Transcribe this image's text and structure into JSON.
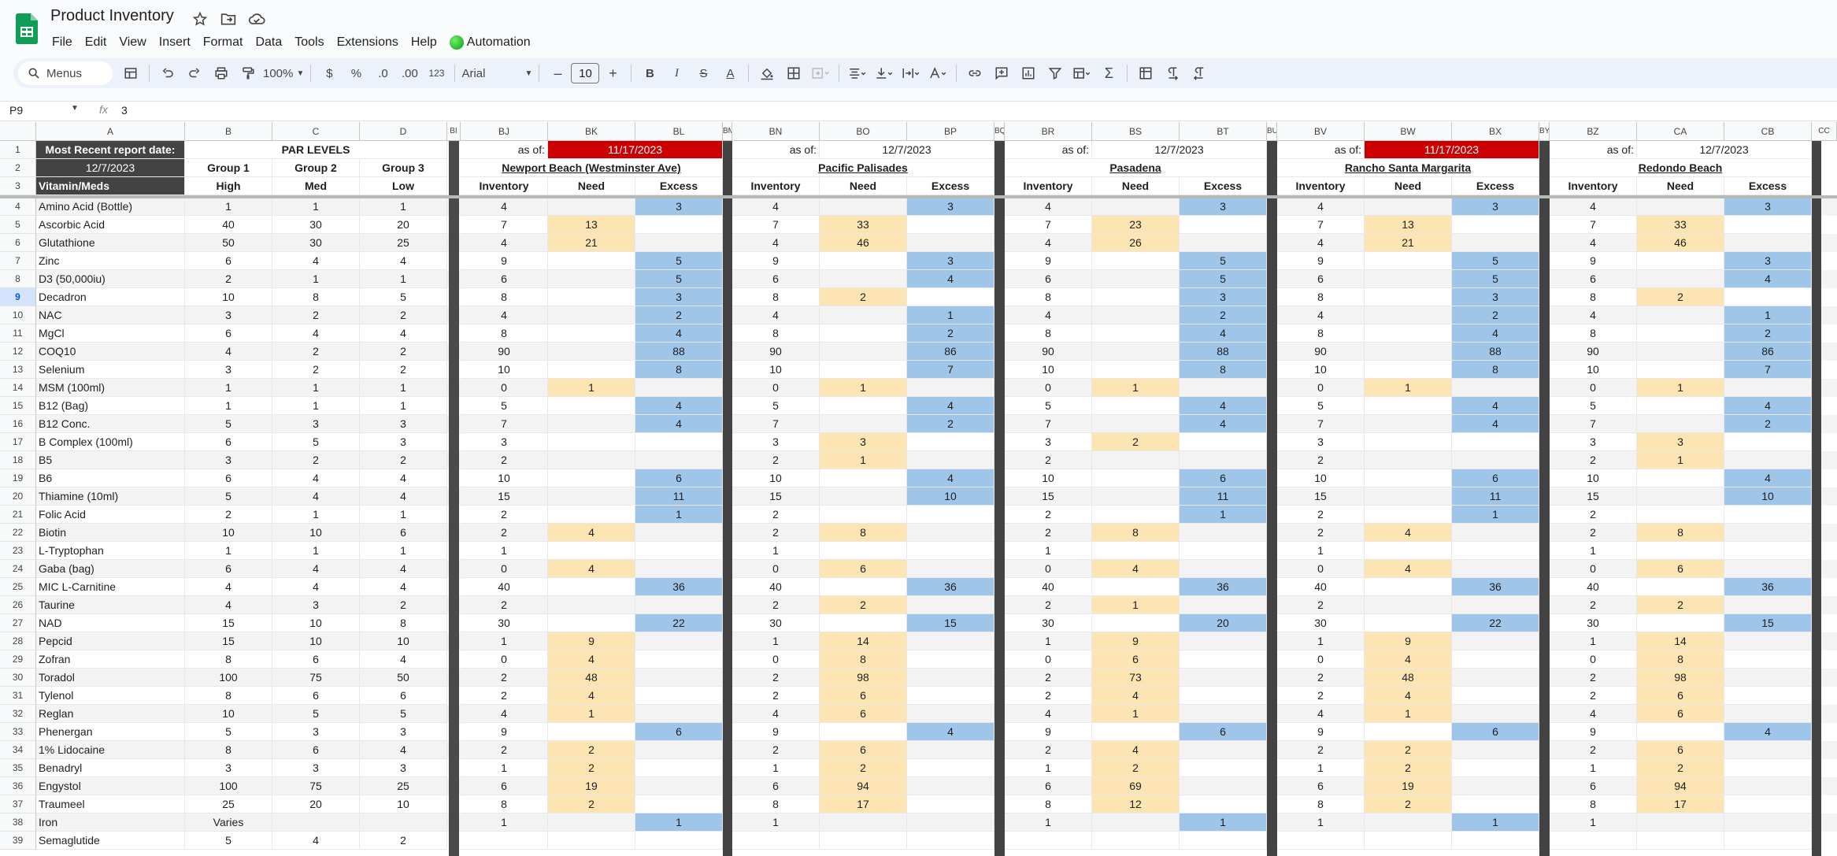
{
  "app": {
    "title": "Product Inventory",
    "menus": [
      "File",
      "Edit",
      "View",
      "Insert",
      "Format",
      "Data",
      "Tools",
      "Extensions",
      "Help"
    ],
    "automation_label": "Automation"
  },
  "toolbar": {
    "search_label": "Menus",
    "zoom": "100%",
    "currency": "$",
    "percent": "%",
    "decrease_decimal": ".0",
    "increase_decimal": ".00",
    "number_format": "123",
    "font": "Arial",
    "font_size": "10",
    "minus": "–",
    "plus": "+",
    "bold": "B",
    "italic": "I",
    "strike": "S",
    "underline_a": "A"
  },
  "formula_bar": {
    "cell_ref": "P9",
    "fx": "fx",
    "value": "3"
  },
  "grid": {
    "col_headers": {
      "A": "A",
      "B": "B",
      "C": "C",
      "D": "D",
      "BI": "BI",
      "BJ": "BJ",
      "BK": "BK",
      "BL": "BL",
      "BM": "BM",
      "BN": "BN",
      "BO": "BO",
      "BP": "BP",
      "BQ": "BQ",
      "BR": "BR",
      "BS": "BS",
      "BT": "BT",
      "BU": "BU",
      "BV": "BV",
      "BW": "BW",
      "BX": "BX",
      "BY": "BY",
      "BZ": "BZ",
      "CA": "CA",
      "CB": "CB",
      "CC": "CC"
    },
    "selected_row": 9,
    "header": {
      "recent_label": "Most Recent report date:",
      "recent_date": "12/7/2023",
      "par_title": "PAR LEVELS",
      "groups": [
        "Group 1",
        "Group 2",
        "Group 3"
      ],
      "levels": [
        "High",
        "Med",
        "Low"
      ],
      "vitamin_label": "Vitamin/Meds"
    },
    "rows": [
      {
        "n": 4,
        "name": "Amino Acid (Bottle)",
        "par": [
          "1",
          "1",
          "1"
        ]
      },
      {
        "n": 5,
        "name": "Ascorbic Acid",
        "par": [
          "40",
          "30",
          "20"
        ]
      },
      {
        "n": 6,
        "name": "Glutathione",
        "par": [
          "50",
          "30",
          "25"
        ]
      },
      {
        "n": 7,
        "name": "Zinc",
        "par": [
          "6",
          "4",
          "4"
        ]
      },
      {
        "n": 8,
        "name": "D3 (50,000iu)",
        "par": [
          "2",
          "1",
          "1"
        ]
      },
      {
        "n": 9,
        "name": "Decadron",
        "par": [
          "10",
          "8",
          "5"
        ]
      },
      {
        "n": 10,
        "name": "NAC",
        "par": [
          "3",
          "2",
          "2"
        ]
      },
      {
        "n": 11,
        "name": "MgCl",
        "par": [
          "6",
          "4",
          "4"
        ]
      },
      {
        "n": 12,
        "name": "COQ10",
        "par": [
          "4",
          "2",
          "2"
        ]
      },
      {
        "n": 13,
        "name": "Selenium",
        "par": [
          "3",
          "2",
          "2"
        ]
      },
      {
        "n": 14,
        "name": "MSM (100ml)",
        "par": [
          "1",
          "1",
          "1"
        ]
      },
      {
        "n": 15,
        "name": "B12 (Bag)",
        "par": [
          "1",
          "1",
          "1"
        ]
      },
      {
        "n": 16,
        "name": "B12 Conc.",
        "par": [
          "5",
          "3",
          "3"
        ]
      },
      {
        "n": 17,
        "name": "B Complex (100ml)",
        "par": [
          "6",
          "5",
          "3"
        ]
      },
      {
        "n": 18,
        "name": "B5",
        "par": [
          "3",
          "2",
          "2"
        ]
      },
      {
        "n": 19,
        "name": "B6",
        "par": [
          "6",
          "4",
          "4"
        ]
      },
      {
        "n": 20,
        "name": "Thiamine (10ml)",
        "par": [
          "5",
          "4",
          "4"
        ]
      },
      {
        "n": 21,
        "name": "Folic Acid",
        "par": [
          "2",
          "1",
          "1"
        ]
      },
      {
        "n": 22,
        "name": "Biotin",
        "par": [
          "10",
          "10",
          "6"
        ]
      },
      {
        "n": 23,
        "name": "L-Tryptophan",
        "par": [
          "1",
          "1",
          "1"
        ]
      },
      {
        "n": 24,
        "name": "Gaba (bag)",
        "par": [
          "6",
          "4",
          "4"
        ]
      },
      {
        "n": 25,
        "name": "MIC L-Carnitine",
        "par": [
          "4",
          "4",
          "4"
        ]
      },
      {
        "n": 26,
        "name": "Taurine",
        "par": [
          "4",
          "3",
          "2"
        ]
      },
      {
        "n": 27,
        "name": "NAD",
        "par": [
          "15",
          "10",
          "8"
        ]
      },
      {
        "n": 28,
        "name": "Pepcid",
        "par": [
          "15",
          "10",
          "10"
        ]
      },
      {
        "n": 29,
        "name": "Zofran",
        "par": [
          "8",
          "6",
          "4"
        ]
      },
      {
        "n": 30,
        "name": "Toradol",
        "par": [
          "100",
          "75",
          "50"
        ]
      },
      {
        "n": 31,
        "name": "Tylenol",
        "par": [
          "8",
          "6",
          "6"
        ]
      },
      {
        "n": 32,
        "name": "Reglan",
        "par": [
          "10",
          "5",
          "5"
        ]
      },
      {
        "n": 33,
        "name": "Phenergan",
        "par": [
          "5",
          "3",
          "3"
        ]
      },
      {
        "n": 34,
        "name": "1% Lidocaine",
        "par": [
          "8",
          "6",
          "4"
        ]
      },
      {
        "n": 35,
        "name": "Benadryl",
        "par": [
          "3",
          "3",
          "3"
        ]
      },
      {
        "n": 36,
        "name": "Engystol",
        "par": [
          "100",
          "75",
          "25"
        ]
      },
      {
        "n": 37,
        "name": "Traumeel",
        "par": [
          "25",
          "20",
          "10"
        ]
      },
      {
        "n": 38,
        "name": "Iron",
        "par": [
          "Varies",
          "",
          ""
        ]
      },
      {
        "n": 39,
        "name": "Semaglutide",
        "par": [
          "5",
          "4",
          "2"
        ]
      }
    ],
    "locations": [
      {
        "name": "Newport Beach (Westminster Ave)",
        "as_of": "as of:",
        "date": "11/17/2023",
        "date_red": true,
        "cols": [
          "Inventory",
          "Need",
          "Excess"
        ],
        "inventory": [
          "4",
          "7",
          "4",
          "9",
          "6",
          "8",
          "4",
          "8",
          "90",
          "10",
          "0",
          "5",
          "7",
          "3",
          "2",
          "10",
          "15",
          "2",
          "2",
          "1",
          "0",
          "40",
          "2",
          "30",
          "1",
          "0",
          "2",
          "2",
          "4",
          "9",
          "2",
          "1",
          "6",
          "8",
          "1",
          ""
        ],
        "need": [
          "",
          "13",
          "21",
          "",
          "",
          "",
          "",
          "",
          "",
          "",
          "1",
          "",
          "",
          "",
          "",
          "",
          "",
          "",
          "4",
          "",
          "4",
          "",
          "",
          "",
          "9",
          "4",
          "48",
          "4",
          "1",
          "",
          "2",
          "2",
          "19",
          "2",
          "",
          ""
        ],
        "excess": [
          "3",
          "",
          "",
          "5",
          "5",
          "3",
          "2",
          "4",
          "88",
          "8",
          "",
          "4",
          "4",
          "",
          "",
          "6",
          "11",
          "1",
          "",
          "",
          "",
          "36",
          "",
          "22",
          "",
          "",
          "",
          "",
          "",
          "6",
          "",
          "",
          "",
          "",
          "1",
          ""
        ]
      },
      {
        "name": "Pacific Palisades",
        "as_of": "as of:",
        "date": "12/7/2023",
        "date_red": false,
        "cols": [
          "Inventory",
          "Need",
          "Excess"
        ],
        "inventory": [
          "4",
          "7",
          "4",
          "9",
          "6",
          "8",
          "4",
          "8",
          "90",
          "10",
          "0",
          "5",
          "7",
          "3",
          "2",
          "10",
          "15",
          "2",
          "2",
          "1",
          "0",
          "40",
          "2",
          "30",
          "1",
          "0",
          "2",
          "2",
          "4",
          "9",
          "2",
          "1",
          "6",
          "8",
          "1",
          ""
        ],
        "need": [
          "",
          "33",
          "46",
          "",
          "",
          "2",
          "",
          "",
          "",
          "",
          "1",
          "",
          "",
          "3",
          "1",
          "",
          "",
          "",
          "8",
          "",
          "6",
          "",
          "2",
          "",
          "14",
          "8",
          "98",
          "6",
          "6",
          "",
          "6",
          "2",
          "94",
          "17",
          "",
          ""
        ],
        "excess": [
          "3",
          "",
          "",
          "3",
          "4",
          "",
          "1",
          "2",
          "86",
          "7",
          "",
          "4",
          "2",
          "",
          "",
          "4",
          "10",
          "",
          "",
          "",
          "",
          "36",
          "",
          "15",
          "",
          "",
          "",
          "",
          "",
          "4",
          "",
          "",
          "",
          "",
          "",
          ""
        ]
      },
      {
        "name": "Pasadena",
        "as_of": "as of:",
        "date": "12/7/2023",
        "date_red": false,
        "cols": [
          "Inventory",
          "Need",
          "Excess"
        ],
        "inventory": [
          "4",
          "7",
          "4",
          "9",
          "6",
          "8",
          "4",
          "8",
          "90",
          "10",
          "0",
          "5",
          "7",
          "3",
          "2",
          "10",
          "15",
          "2",
          "2",
          "1",
          "0",
          "40",
          "2",
          "30",
          "1",
          "0",
          "2",
          "2",
          "4",
          "9",
          "2",
          "1",
          "6",
          "8",
          "1",
          ""
        ],
        "need": [
          "",
          "23",
          "26",
          "",
          "",
          "",
          "",
          "",
          "",
          "",
          "1",
          "",
          "",
          "2",
          "",
          "",
          "",
          "",
          "8",
          "",
          "4",
          "",
          "1",
          "",
          "9",
          "6",
          "73",
          "4",
          "1",
          "",
          "4",
          "2",
          "69",
          "12",
          "",
          ""
        ],
        "excess": [
          "3",
          "",
          "",
          "5",
          "5",
          "3",
          "2",
          "4",
          "88",
          "8",
          "",
          "4",
          "4",
          "",
          "",
          "6",
          "11",
          "1",
          "",
          "",
          "",
          "36",
          "",
          "20",
          "",
          "",
          "",
          "",
          "",
          "6",
          "",
          "",
          "",
          "",
          "1",
          ""
        ]
      },
      {
        "name": "Rancho Santa Margarita",
        "as_of": "as of:",
        "date": "11/17/2023",
        "date_red": true,
        "cols": [
          "Inventory",
          "Need",
          "Excess"
        ],
        "inventory": [
          "4",
          "7",
          "4",
          "9",
          "6",
          "8",
          "4",
          "8",
          "90",
          "10",
          "0",
          "5",
          "7",
          "3",
          "2",
          "10",
          "15",
          "2",
          "2",
          "1",
          "0",
          "40",
          "2",
          "30",
          "1",
          "0",
          "2",
          "2",
          "4",
          "9",
          "2",
          "1",
          "6",
          "8",
          "1",
          ""
        ],
        "need": [
          "",
          "13",
          "21",
          "",
          "",
          "",
          "",
          "",
          "",
          "",
          "1",
          "",
          "",
          "",
          "",
          "",
          "",
          "",
          "4",
          "",
          "4",
          "",
          "",
          "",
          "9",
          "4",
          "48",
          "4",
          "1",
          "",
          "2",
          "2",
          "19",
          "2",
          "",
          ""
        ],
        "excess": [
          "3",
          "",
          "",
          "5",
          "5",
          "3",
          "2",
          "4",
          "88",
          "8",
          "",
          "4",
          "4",
          "",
          "",
          "6",
          "11",
          "1",
          "",
          "",
          "",
          "36",
          "",
          "22",
          "",
          "",
          "",
          "",
          "",
          "6",
          "",
          "",
          "",
          "",
          "1",
          ""
        ]
      },
      {
        "name": "Redondo Beach",
        "as_of": "as of:",
        "date": "12/7/2023",
        "date_red": false,
        "cols": [
          "Inventory",
          "Need",
          "Excess"
        ],
        "inventory": [
          "4",
          "7",
          "4",
          "9",
          "6",
          "8",
          "4",
          "8",
          "90",
          "10",
          "0",
          "5",
          "7",
          "3",
          "2",
          "10",
          "15",
          "2",
          "2",
          "1",
          "0",
          "40",
          "2",
          "30",
          "1",
          "0",
          "2",
          "2",
          "4",
          "9",
          "2",
          "1",
          "6",
          "8",
          "1",
          ""
        ],
        "need": [
          "",
          "33",
          "46",
          "",
          "",
          "2",
          "",
          "",
          "",
          "",
          "1",
          "",
          "",
          "3",
          "1",
          "",
          "",
          "",
          "8",
          "",
          "6",
          "",
          "2",
          "",
          "14",
          "8",
          "98",
          "6",
          "6",
          "",
          "6",
          "2",
          "94",
          "17",
          "",
          ""
        ],
        "excess": [
          "3",
          "",
          "",
          "3",
          "4",
          "",
          "1",
          "2",
          "86",
          "7",
          "",
          "4",
          "2",
          "",
          "",
          "4",
          "10",
          "",
          "",
          "",
          "",
          "36",
          "",
          "15",
          "",
          "",
          "",
          "",
          "",
          "4",
          "",
          "",
          "",
          "",
          "",
          ""
        ]
      }
    ],
    "colors": {
      "header_dark": "#434343",
      "date_red": "#cc0000",
      "need": "#fce5b2",
      "excess": "#9fc5e8",
      "alt_row": "#f3f3f3"
    }
  }
}
